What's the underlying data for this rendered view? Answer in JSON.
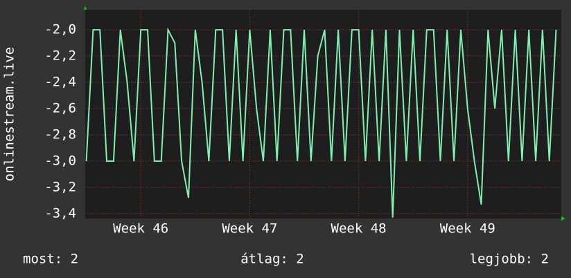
{
  "chart_data": {
    "type": "line",
    "y_label": "onlinestream.live",
    "x": [
      45.5,
      45.5625,
      45.625,
      45.6875,
      45.75,
      45.8125,
      45.875,
      45.9375,
      46.0,
      46.0625,
      46.125,
      46.1875,
      46.25,
      46.3125,
      46.375,
      46.4375,
      46.5,
      46.5625,
      46.625,
      46.6875,
      46.75,
      46.8125,
      46.875,
      46.9375,
      47.0,
      47.0625,
      47.125,
      47.1875,
      47.25,
      47.3125,
      47.375,
      47.4375,
      47.5,
      47.5625,
      47.625,
      47.6875,
      47.75,
      47.8125,
      47.875,
      47.9375,
      48.0,
      48.0625,
      48.125,
      48.1875,
      48.25,
      48.3125,
      48.375,
      48.4375,
      48.5,
      48.5625,
      48.625,
      48.6875,
      48.75,
      48.8125,
      48.875,
      48.9375,
      49.0,
      49.0625,
      49.125,
      49.1875,
      49.25,
      49.3125,
      49.375,
      49.4375,
      49.5,
      49.5625,
      49.625,
      49.6875,
      49.75,
      49.8125
    ],
    "series": [
      {
        "color": "#80f0b0",
        "values": [
          -3.0,
          -2.0,
          -2.0,
          -3.0,
          -3.0,
          -2.0,
          -2.4,
          -3.0,
          -2.0,
          -2.0,
          -3.0,
          -3.0,
          -2.0,
          -2.1,
          -3.0,
          -3.28,
          -2.0,
          -2.4,
          -3.0,
          -2.0,
          -2.0,
          -3.0,
          -2.0,
          -3.0,
          -2.0,
          -2.6,
          -3.0,
          -2.0,
          -3.0,
          -2.0,
          -2.0,
          -3.0,
          -2.0,
          -3.0,
          -2.2,
          -2.0,
          -3.0,
          -2.0,
          -3.0,
          -2.0,
          -2.0,
          -3.0,
          -2.0,
          -3.0,
          -2.0,
          -3.43,
          -2.0,
          -3.0,
          -2.0,
          -3.0,
          -2.0,
          -2.0,
          -3.0,
          -2.0,
          -3.0,
          -2.0,
          -2.6,
          -3.0,
          -3.33,
          -2.0,
          -2.6,
          -2.0,
          -3.0,
          -2.0,
          -3.0,
          -2.0,
          -3.0,
          -2.0,
          -3.0,
          -2.0
        ]
      }
    ],
    "xlim": [
      45.49,
      49.86
    ],
    "xticks": [
      {
        "value": 46,
        "label": "Week 46"
      },
      {
        "value": 47,
        "label": "Week 47"
      },
      {
        "value": 48,
        "label": "Week 48"
      },
      {
        "value": 49,
        "label": "Week 49"
      }
    ],
    "ylim": [
      -3.437,
      -1.847
    ],
    "yticks": [
      {
        "value": -2.0,
        "label": "-2,0"
      },
      {
        "value": -2.2,
        "label": "-2,2"
      },
      {
        "value": -2.4,
        "label": "-2,4"
      },
      {
        "value": -2.6,
        "label": "-2,6"
      },
      {
        "value": -2.8,
        "label": "-2,8"
      },
      {
        "value": -3.0,
        "label": "-3,0"
      },
      {
        "value": -3.2,
        "label": "-3,2"
      },
      {
        "value": -3.4,
        "label": "-3,4"
      }
    ],
    "grid": true,
    "footer": [
      "most: 2",
      "átlag: 2",
      "legjobb: 2"
    ]
  }
}
